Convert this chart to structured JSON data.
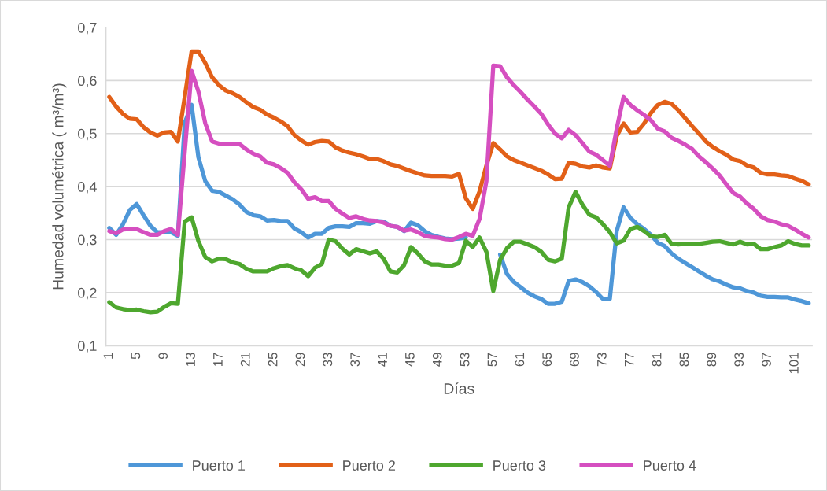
{
  "chart_data": {
    "type": "line",
    "xlabel": "Días",
    "ylabel": "Humedad volumétrica ( m³/m³)",
    "categories": [
      "1",
      null,
      null,
      null,
      "5",
      null,
      null,
      null,
      "9",
      null,
      null,
      null,
      "13",
      null,
      null,
      null,
      "17",
      null,
      null,
      null,
      "21",
      null,
      null,
      null,
      "25",
      null,
      null,
      null,
      "29",
      null,
      null,
      null,
      "33",
      null,
      null,
      null,
      "37",
      null,
      null,
      null,
      "41",
      null,
      null,
      null,
      "45",
      null,
      null,
      null,
      "49",
      null,
      null,
      null,
      "53",
      null,
      null,
      null,
      "57",
      null,
      null,
      null,
      "61",
      null,
      null,
      null,
      "65",
      null,
      null,
      null,
      "69",
      null,
      null,
      null,
      "73",
      null,
      null,
      null,
      "77",
      null,
      null,
      null,
      "81",
      null,
      null,
      null,
      "85",
      null,
      null,
      null,
      "89",
      null,
      null,
      null,
      "93",
      null,
      null,
      null,
      "97",
      null,
      null,
      null,
      "101",
      null,
      null
    ],
    "ylim": [
      0.1,
      0.7
    ],
    "yticks": [
      {
        "value": 0.1,
        "label": "0,1"
      },
      {
        "value": 0.2,
        "label": "0,2"
      },
      {
        "value": 0.3,
        "label": "0,3"
      },
      {
        "value": 0.4,
        "label": "0,4"
      },
      {
        "value": 0.5,
        "label": "0,5"
      },
      {
        "value": 0.6,
        "label": "0,6"
      },
      {
        "value": 0.7,
        "label": "0,7"
      }
    ],
    "grid": "y",
    "legend": "bottom",
    "marker": "none",
    "line_style": "solid",
    "series": [
      {
        "name": "Puerto 1",
        "color": "#4e97d8",
        "values": [
          0.322,
          0.309,
          0.329,
          0.356,
          0.367,
          0.346,
          0.326,
          0.314,
          0.314,
          0.314,
          0.307,
          0.52,
          0.554,
          0.455,
          0.41,
          0.392,
          0.39,
          0.383,
          0.376,
          0.366,
          0.352,
          0.346,
          0.344,
          0.336,
          0.337,
          0.335,
          0.335,
          0.321,
          0.314,
          0.304,
          0.311,
          0.311,
          0.322,
          0.325,
          0.325,
          0.324,
          0.331,
          0.331,
          0.33,
          0.335,
          0.334,
          0.326,
          0.324,
          0.316,
          0.332,
          0.327,
          0.316,
          0.309,
          0.305,
          0.302,
          0.301,
          0.302,
          0.304,
          null,
          null,
          null,
          null,
          0.272,
          0.235,
          0.22,
          0.21,
          0.2,
          0.193,
          0.188,
          0.179,
          0.179,
          0.183,
          0.222,
          0.225,
          0.22,
          0.212,
          0.201,
          0.188,
          0.188,
          0.316,
          0.361,
          0.341,
          0.329,
          0.32,
          0.309,
          0.294,
          0.288,
          0.274,
          0.264,
          0.256,
          0.248,
          0.24,
          0.232,
          0.225,
          0.221,
          0.215,
          0.21,
          0.208,
          0.203,
          0.2,
          0.194,
          0.192,
          0.192,
          0.191,
          0.191,
          0.187,
          0.184,
          0.18
        ]
      },
      {
        "name": "Puerto 2",
        "color": "#e26018",
        "values": [
          0.569,
          0.551,
          0.537,
          0.528,
          0.527,
          0.512,
          0.502,
          0.496,
          0.502,
          0.503,
          0.485,
          0.569,
          0.655,
          0.655,
          0.633,
          0.606,
          0.591,
          0.581,
          0.576,
          0.569,
          0.559,
          0.55,
          0.545,
          0.536,
          0.53,
          0.523,
          0.514,
          0.497,
          0.487,
          0.479,
          0.484,
          0.486,
          0.485,
          0.474,
          0.468,
          0.464,
          0.461,
          0.457,
          0.452,
          0.452,
          0.448,
          0.442,
          0.439,
          0.434,
          0.429,
          0.425,
          0.421,
          0.42,
          0.42,
          0.42,
          0.419,
          0.424,
          0.378,
          0.358,
          0.391,
          0.44,
          0.482,
          0.47,
          0.457,
          0.45,
          0.445,
          0.44,
          0.435,
          0.43,
          0.423,
          0.414,
          0.415,
          0.445,
          0.443,
          0.438,
          0.436,
          0.44,
          0.436,
          0.434,
          0.495,
          0.519,
          0.502,
          0.503,
          0.519,
          0.539,
          0.554,
          0.56,
          0.556,
          0.544,
          0.529,
          0.514,
          0.5,
          0.485,
          0.475,
          0.467,
          0.46,
          0.451,
          0.448,
          0.44,
          0.436,
          0.426,
          0.423,
          0.423,
          0.421,
          0.42,
          0.415,
          0.411,
          0.404
        ]
      },
      {
        "name": "Puerto 3",
        "color": "#4ea72e",
        "values": [
          0.182,
          0.172,
          0.169,
          0.167,
          0.168,
          0.165,
          0.163,
          0.164,
          0.173,
          0.18,
          0.179,
          0.334,
          0.342,
          0.297,
          0.267,
          0.259,
          0.264,
          0.263,
          0.257,
          0.254,
          0.245,
          0.24,
          0.24,
          0.24,
          0.246,
          0.25,
          0.252,
          0.246,
          0.242,
          0.231,
          0.247,
          0.254,
          0.3,
          0.297,
          0.283,
          0.272,
          0.282,
          0.278,
          0.274,
          0.278,
          0.264,
          0.24,
          0.238,
          0.252,
          0.286,
          0.274,
          0.259,
          0.253,
          0.253,
          0.251,
          0.251,
          0.256,
          0.298,
          0.286,
          0.304,
          0.277,
          0.203,
          0.262,
          0.284,
          0.296,
          0.296,
          0.291,
          0.286,
          0.277,
          0.262,
          0.259,
          0.264,
          0.361,
          0.39,
          0.366,
          0.347,
          0.342,
          0.329,
          0.314,
          0.293,
          0.298,
          0.32,
          0.324,
          0.316,
          0.306,
          0.305,
          0.309,
          0.292,
          0.291,
          0.292,
          0.292,
          0.292,
          0.294,
          0.296,
          0.297,
          0.294,
          0.291,
          0.296,
          0.291,
          0.292,
          0.282,
          0.282,
          0.286,
          0.289,
          0.297,
          0.292,
          0.289,
          0.289
        ]
      },
      {
        "name": "Puerto 4",
        "color": "#d54fc0",
        "values": [
          0.316,
          0.312,
          0.319,
          0.32,
          0.32,
          0.314,
          0.309,
          0.309,
          0.316,
          0.32,
          0.309,
          0.465,
          0.618,
          0.579,
          0.519,
          0.485,
          0.481,
          0.481,
          0.481,
          0.48,
          0.47,
          0.462,
          0.457,
          0.445,
          0.442,
          0.435,
          0.426,
          0.408,
          0.395,
          0.377,
          0.38,
          0.373,
          0.373,
          0.358,
          0.349,
          0.341,
          0.344,
          0.339,
          0.336,
          0.335,
          0.332,
          0.326,
          0.324,
          0.317,
          0.319,
          0.314,
          0.307,
          0.305,
          0.304,
          0.301,
          0.3,
          0.305,
          0.311,
          0.307,
          0.339,
          0.41,
          0.628,
          0.627,
          0.606,
          0.591,
          0.578,
          0.564,
          0.551,
          0.537,
          0.517,
          0.5,
          0.491,
          0.507,
          0.497,
          0.482,
          0.466,
          0.46,
          0.45,
          0.439,
          0.509,
          0.569,
          0.554,
          0.544,
          0.535,
          0.525,
          0.509,
          0.504,
          0.492,
          0.486,
          0.479,
          0.471,
          0.457,
          0.446,
          0.434,
          0.421,
          0.404,
          0.388,
          0.381,
          0.368,
          0.358,
          0.344,
          0.337,
          0.334,
          0.329,
          0.326,
          0.319,
          0.311,
          0.304
        ]
      }
    ]
  }
}
